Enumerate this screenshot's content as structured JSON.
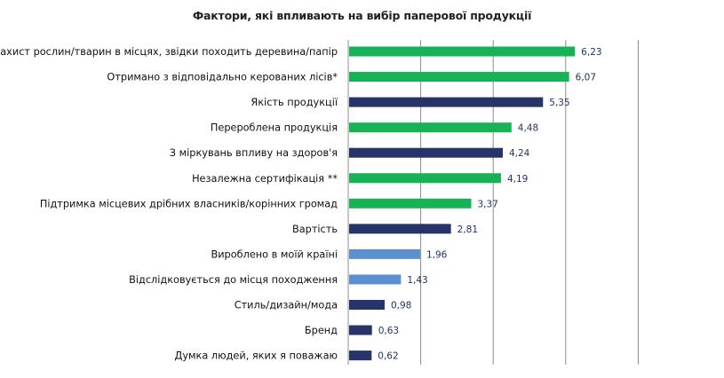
{
  "chart_data": {
    "type": "bar",
    "orientation": "horizontal",
    "title": "Фактори, які впливають на вибір паперової продукції",
    "xlabel": "",
    "ylabel": "",
    "xlim": [
      0,
      8
    ],
    "grid": true,
    "categories": [
      "Захист рослин/тварин в місцях, звідки походить деревина/папір",
      "Отримано з відповідально керованих лісів*",
      "Якість продукції",
      "Перероблена продукція",
      "З міркувань впливу на здоров'я",
      "Незалежна сертифікація **",
      "Підтримка  місцевих дрібних власників/корінних громад",
      "Вартість",
      "Вироблено в моїй країні",
      "Відслідковується до місця походження",
      "Стиль/дизайн/мода",
      "Бренд",
      "Думка людей, яких я поважаю"
    ],
    "values": [
      6.23,
      6.07,
      5.35,
      4.48,
      4.24,
      4.19,
      3.37,
      2.81,
      1.96,
      1.43,
      0.98,
      0.63,
      0.62
    ],
    "value_labels": [
      "6,23",
      "6,07",
      "5,35",
      "4,48",
      "4,24",
      "4,19",
      "3,37",
      "2,81",
      "1,96",
      "1,43",
      "0,98",
      "0,63",
      "0,62"
    ],
    "bar_colors": [
      "#17b256",
      "#17b256",
      "#26346a",
      "#17b256",
      "#26346a",
      "#17b256",
      "#17b256",
      "#26346a",
      "#5b8fcf",
      "#5b8fcf",
      "#26346a",
      "#26346a",
      "#26346a"
    ],
    "gridline_color": "#8c8c8c",
    "value_label_color": "#1f3364"
  }
}
